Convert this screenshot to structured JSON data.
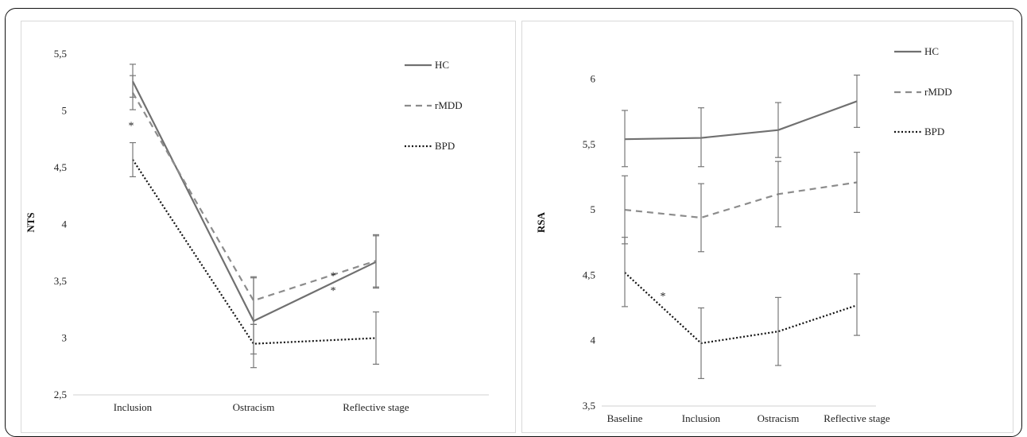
{
  "chart_data": [
    {
      "type": "line",
      "title": "",
      "xlabel": "",
      "ylabel": "NTS",
      "ylim": [
        2.5,
        5.5
      ],
      "yticks": [
        "2,5",
        "3",
        "3,5",
        "4",
        "4,5",
        "5",
        "5,5"
      ],
      "ytick_values": [
        2.5,
        3,
        3.5,
        4,
        4.5,
        5,
        5.5
      ],
      "categories": [
        "Inclusion",
        "Ostracism",
        "Reflective stage"
      ],
      "grid": false,
      "legend_position": "right",
      "series": [
        {
          "name": "HC",
          "style": "solid",
          "color": "#707070",
          "values": [
            5.26,
            3.15,
            3.67
          ],
          "err_lo": [
            5.12,
            2.86,
            3.44
          ],
          "err_hi": [
            5.41,
            3.53,
            3.9
          ]
        },
        {
          "name": "rMDD",
          "style": "dashed",
          "color": "#8c8c8c",
          "values": [
            5.16,
            3.33,
            3.68
          ],
          "err_lo": [
            5.01,
            3.12,
            3.45
          ],
          "err_hi": [
            5.31,
            3.54,
            3.91
          ]
        },
        {
          "name": "BPD",
          "style": "dotted",
          "color": "#111111",
          "values": [
            4.57,
            2.95,
            3.0
          ],
          "err_lo": [
            4.42,
            2.74,
            2.77
          ],
          "err_hi": [
            4.72,
            3.12,
            3.23
          ]
        }
      ],
      "annotations": [
        {
          "text": "*",
          "x_index": 0,
          "y": 4.88
        },
        {
          "text": "*",
          "x_index": 1.65,
          "y": 3.56
        },
        {
          "text": "*",
          "x_index": 1.65,
          "y": 3.43
        }
      ]
    },
    {
      "type": "line",
      "title": "",
      "xlabel": "",
      "ylabel": "RSA",
      "ylim": [
        3.5,
        6.1
      ],
      "yticks": [
        "3,5",
        "4",
        "4,5",
        "5",
        "5,5",
        "6"
      ],
      "ytick_values": [
        3.5,
        4,
        4.5,
        5,
        5.5,
        6
      ],
      "categories": [
        "Baseline",
        "Inclusion",
        "Ostracism",
        "Reflective stage"
      ],
      "grid": false,
      "legend_position": "right",
      "series": [
        {
          "name": "HC",
          "style": "solid",
          "color": "#707070",
          "values": [
            5.54,
            5.55,
            5.61,
            5.83
          ],
          "err_lo": [
            5.33,
            5.33,
            5.4,
            5.63
          ],
          "err_hi": [
            5.76,
            5.78,
            5.82,
            6.03
          ]
        },
        {
          "name": "rMDD",
          "style": "dashed",
          "color": "#8c8c8c",
          "values": [
            5.0,
            4.94,
            5.12,
            5.21
          ],
          "err_lo": [
            4.74,
            4.68,
            4.87,
            4.98
          ],
          "err_hi": [
            5.26,
            5.2,
            5.37,
            5.44
          ]
        },
        {
          "name": "BPD",
          "style": "dotted",
          "color": "#111111",
          "values": [
            4.52,
            3.98,
            4.07,
            4.27
          ],
          "err_lo": [
            4.26,
            3.71,
            3.81,
            4.04
          ],
          "err_hi": [
            4.79,
            4.25,
            4.33,
            4.51
          ]
        }
      ],
      "annotations": [
        {
          "text": "*",
          "x_index": 0.5,
          "y": 4.35
        }
      ]
    }
  ]
}
